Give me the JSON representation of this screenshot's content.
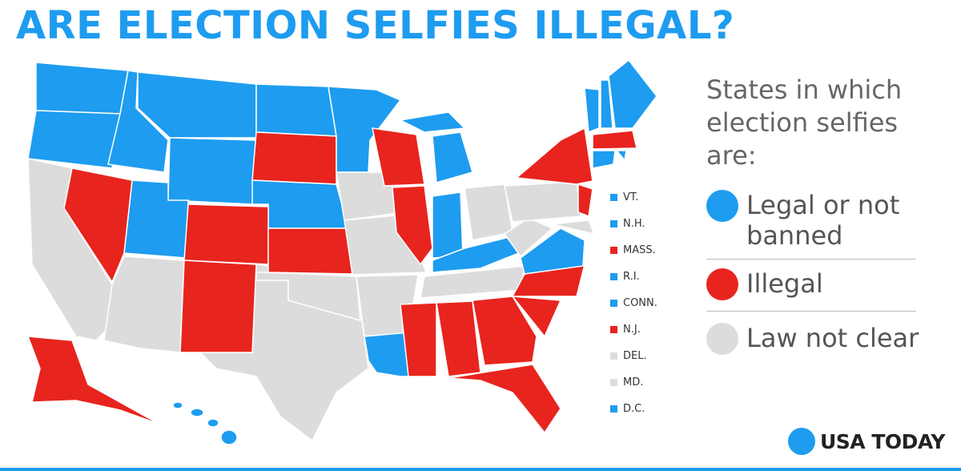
{
  "header": {
    "title": "ARE ELECTION SELFIES ILLEGAL?"
  },
  "legend": {
    "heading": "States in which election selfies are:",
    "items": [
      {
        "label": "Legal or not banned",
        "color": "#1e9cf0"
      },
      {
        "label": "Illegal",
        "color": "#e8241e"
      },
      {
        "label": "Law not clear",
        "color": "#dcdcdc"
      }
    ]
  },
  "small_states": [
    {
      "label": "VT.",
      "color": "#1e9cf0"
    },
    {
      "label": "N.H.",
      "color": "#1e9cf0"
    },
    {
      "label": "MASS.",
      "color": "#e8241e"
    },
    {
      "label": "R.I.",
      "color": "#1e9cf0"
    },
    {
      "label": "CONN.",
      "color": "#1e9cf0"
    },
    {
      "label": "N.J.",
      "color": "#e8241e"
    },
    {
      "label": "DEL.",
      "color": "#dcdcdc"
    },
    {
      "label": "MD.",
      "color": "#dcdcdc"
    },
    {
      "label": "D.C.",
      "color": "#1e9cf0"
    }
  ],
  "logo": "USA TODAY"
}
